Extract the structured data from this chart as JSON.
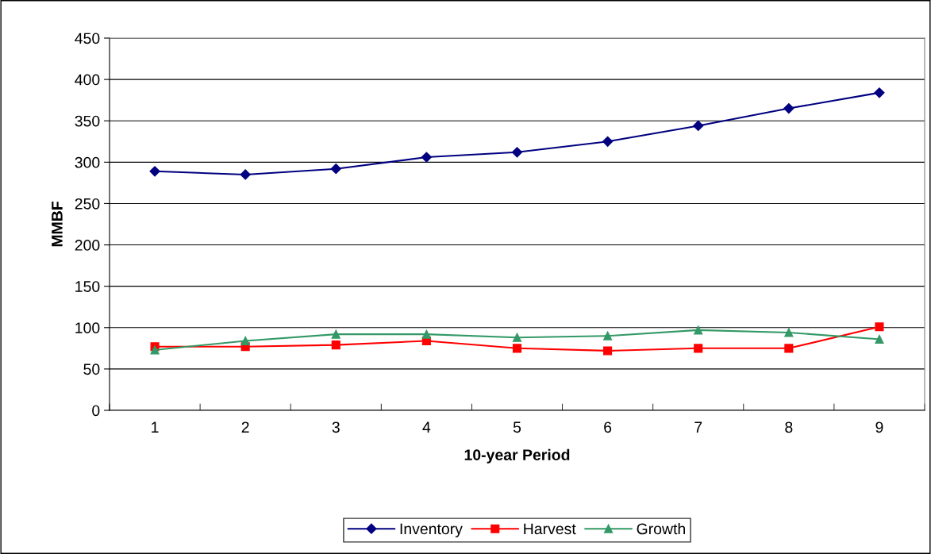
{
  "chart_data": {
    "type": "line",
    "xlabel": "10-year Period",
    "ylabel": "MMBF",
    "categories": [
      "1",
      "2",
      "3",
      "4",
      "5",
      "6",
      "7",
      "8",
      "9"
    ],
    "series": [
      {
        "name": "Inventory",
        "color": "#000080",
        "marker": "diamond",
        "values": [
          289,
          285,
          292,
          306,
          312,
          325,
          344,
          365,
          384
        ]
      },
      {
        "name": "Harvest",
        "color": "#ff0000",
        "marker": "square",
        "values": [
          77,
          77,
          79,
          84,
          75,
          72,
          75,
          75,
          101
        ]
      },
      {
        "name": "Growth",
        "color": "#339966",
        "marker": "triangle",
        "values": [
          73,
          84,
          92,
          92,
          88,
          90,
          97,
          94,
          86
        ]
      }
    ],
    "ylim": [
      0,
      450
    ],
    "yticks": [
      0,
      50,
      100,
      150,
      200,
      250,
      300,
      350,
      400,
      450
    ],
    "grid": "y",
    "legend": "bottom",
    "line_style": "solid"
  }
}
